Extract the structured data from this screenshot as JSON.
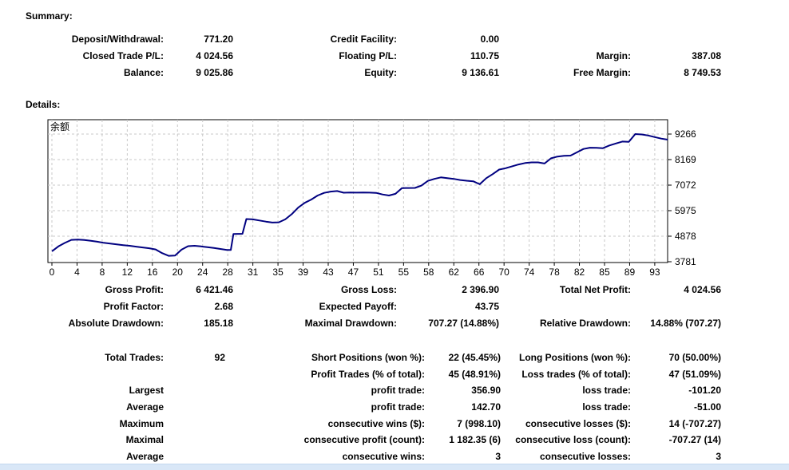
{
  "sections": {
    "summary_heading": "Summary:",
    "details_heading": "Details:"
  },
  "tables": {
    "summary": {
      "rows": [
        [
          "Deposit/Withdrawal:",
          "771.20",
          "Credit Facility:",
          "0.00",
          "",
          ""
        ],
        [
          "Closed Trade P/L:",
          "4 024.56",
          "Floating P/L:",
          "110.75",
          "Margin:",
          "387.08"
        ],
        [
          "Balance:",
          "9 025.86",
          "Equity:",
          "9 136.61",
          "Free Margin:",
          "8 749.53"
        ]
      ]
    },
    "performance": {
      "rows": [
        [
          "Gross Profit:",
          "6 421.46",
          "Gross Loss:",
          "2 396.90",
          "Total Net Profit:",
          "4 024.56"
        ],
        [
          "Profit Factor:",
          "2.68",
          "Expected Payoff:",
          "43.75",
          "",
          ""
        ],
        [
          "Absolute Drawdown:",
          "185.18",
          "Maximal Drawdown:",
          "707.27 (14.88%)",
          "Relative Drawdown:",
          "14.88% (707.27)"
        ]
      ]
    },
    "trades": {
      "rows": [
        [
          "Total Trades:",
          "92",
          "Short Positions (won %):",
          "22 (45.45%)",
          "Long Positions (won %):",
          "70 (50.00%)"
        ],
        [
          "",
          "",
          "Profit Trades (% of total):",
          "45 (48.91%)",
          "Loss trades (% of total):",
          "47 (51.09%)"
        ],
        [
          "Largest",
          "",
          "profit trade:",
          "356.90",
          "loss trade:",
          "-101.20"
        ],
        [
          "Average",
          "",
          "profit trade:",
          "142.70",
          "loss trade:",
          "-51.00"
        ],
        [
          "Maximum",
          "",
          "consecutive wins ($):",
          "7 (998.10)",
          "consecutive losses ($):",
          "14 (-707.27)"
        ],
        [
          "Maximal",
          "",
          "consecutive profit (count):",
          "1 182.35 (6)",
          "consecutive loss (count):",
          "-707.27 (14)"
        ],
        [
          "Average",
          "",
          "consecutive wins:",
          "3",
          "consecutive losses:",
          "3"
        ]
      ]
    }
  },
  "chart_data": {
    "type": "line",
    "title": "余额",
    "legend_position": "top-left-inside",
    "grid": "dashed",
    "y_axis_position": "right",
    "x_range": [
      0,
      95
    ],
    "y_range": [
      3781,
      9266
    ],
    "x_tick_labels": [
      "0",
      "4",
      "8",
      "12",
      "16",
      "20",
      "24",
      "28",
      "31",
      "35",
      "39",
      "43",
      "47",
      "51",
      "55",
      "58",
      "62",
      "66",
      "70",
      "74",
      "78",
      "82",
      "85",
      "89",
      "93"
    ],
    "y_tick_values": [
      9266,
      8169,
      7072,
      5975,
      4878,
      3781
    ],
    "colors": {
      "line": "#000080",
      "grid": "#c8c8c8",
      "axis": "#000000"
    },
    "series": [
      {
        "name": "余额",
        "points": [
          [
            0,
            4230
          ],
          [
            1,
            4440
          ],
          [
            2,
            4590
          ],
          [
            3,
            4720
          ],
          [
            4,
            4735
          ],
          [
            5,
            4715
          ],
          [
            6,
            4680
          ],
          [
            7,
            4640
          ],
          [
            8,
            4595
          ],
          [
            9,
            4560
          ],
          [
            10,
            4525
          ],
          [
            11,
            4495
          ],
          [
            12,
            4465
          ],
          [
            13,
            4430
          ],
          [
            14,
            4395
          ],
          [
            15,
            4360
          ],
          [
            16,
            4310
          ],
          [
            17,
            4150
          ],
          [
            18,
            4035
          ],
          [
            19,
            4050
          ],
          [
            20,
            4300
          ],
          [
            21,
            4450
          ],
          [
            22,
            4465
          ],
          [
            23,
            4440
          ],
          [
            24,
            4405
          ],
          [
            25,
            4370
          ],
          [
            26,
            4330
          ],
          [
            27,
            4290
          ],
          [
            27.6,
            4285
          ],
          [
            28,
            4970
          ],
          [
            29.4,
            4980
          ],
          [
            30,
            5615
          ],
          [
            31,
            5600
          ],
          [
            32,
            5555
          ],
          [
            33,
            5505
          ],
          [
            34,
            5465
          ],
          [
            35,
            5475
          ],
          [
            36,
            5600
          ],
          [
            37,
            5825
          ],
          [
            38,
            6110
          ],
          [
            39,
            6310
          ],
          [
            40,
            6450
          ],
          [
            41,
            6625
          ],
          [
            42,
            6740
          ],
          [
            43,
            6795
          ],
          [
            44,
            6820
          ],
          [
            45,
            6745
          ],
          [
            46,
            6755
          ],
          [
            47,
            6750
          ],
          [
            48,
            6758
          ],
          [
            49,
            6750
          ],
          [
            50,
            6740
          ],
          [
            51,
            6670
          ],
          [
            52,
            6628
          ],
          [
            53,
            6700
          ],
          [
            54,
            6945
          ],
          [
            55,
            6950
          ],
          [
            56,
            6952
          ],
          [
            57,
            7050
          ],
          [
            58,
            7255
          ],
          [
            59,
            7340
          ],
          [
            60,
            7405
          ],
          [
            61,
            7370
          ],
          [
            62,
            7340
          ],
          [
            63,
            7290
          ],
          [
            64,
            7262
          ],
          [
            65,
            7238
          ],
          [
            66,
            7110
          ],
          [
            67,
            7370
          ],
          [
            68,
            7545
          ],
          [
            69,
            7740
          ],
          [
            70,
            7800
          ],
          [
            71,
            7880
          ],
          [
            72,
            7960
          ],
          [
            73,
            8020
          ],
          [
            74,
            8050
          ],
          [
            75,
            8048
          ],
          [
            76,
            8000
          ],
          [
            77,
            8225
          ],
          [
            78,
            8300
          ],
          [
            79,
            8330
          ],
          [
            80,
            8340
          ],
          [
            81,
            8480
          ],
          [
            82,
            8625
          ],
          [
            83,
            8680
          ],
          [
            84,
            8672
          ],
          [
            85,
            8660
          ],
          [
            86,
            8775
          ],
          [
            87,
            8860
          ],
          [
            88,
            8945
          ],
          [
            89,
            8930
          ],
          [
            90,
            9265
          ],
          [
            91,
            9248
          ],
          [
            92,
            9205
          ],
          [
            93,
            9135
          ],
          [
            94,
            9072
          ],
          [
            95,
            9026
          ]
        ]
      }
    ]
  }
}
